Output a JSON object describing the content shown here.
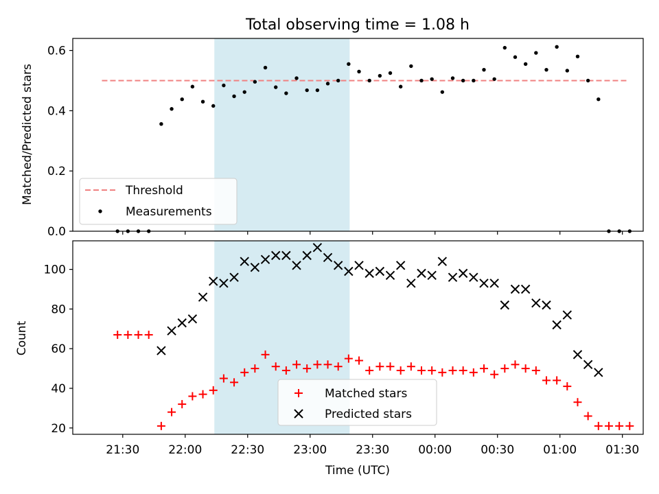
{
  "chart_data": [
    {
      "type": "scatter",
      "title": "Total observing time = 1.08 h",
      "ylabel": "Matched/Predicted stars",
      "xlabel": "",
      "x_unit": "minutes after 21:00 UTC",
      "xlim": [
        6.0,
        280.0
      ],
      "ylim": [
        0.0,
        0.64
      ],
      "yticks": [
        0.0,
        0.2,
        0.4,
        0.6
      ],
      "ytick_labels": [
        "0.0",
        "0.2",
        "0.4",
        "0.6"
      ],
      "highlight_span_x": [
        74.0,
        139.0
      ],
      "threshold": {
        "name": "Threshold",
        "y": 0.5,
        "x_range": [
          20.0,
          272.0
        ],
        "color": "#f08080",
        "style": "dashed"
      },
      "series": [
        {
          "name": "Measurements",
          "color": "#000000",
          "marker": "dot",
          "x": [
            27.5,
            32.5,
            37.5,
            42.5,
            48.5,
            53.5,
            58.5,
            63.5,
            68.5,
            73.5,
            78.5,
            83.5,
            88.5,
            93.5,
            98.5,
            103.5,
            108.5,
            113.5,
            118.5,
            123.5,
            128.5,
            133.5,
            138.5,
            143.5,
            148.5,
            153.5,
            158.5,
            163.5,
            168.5,
            173.5,
            178.5,
            183.5,
            188.5,
            193.5,
            198.5,
            203.5,
            208.5,
            213.5,
            218.5,
            223.5,
            228.5,
            233.5,
            238.5,
            243.5,
            248.5,
            253.5,
            258.5,
            263.5,
            268.5,
            273.5
          ],
          "y": [
            0.0,
            0.0,
            0.0,
            0.0,
            0.356,
            0.406,
            0.438,
            0.48,
            0.43,
            0.416,
            0.484,
            0.448,
            0.462,
            0.496,
            0.543,
            0.478,
            0.458,
            0.508,
            0.468,
            0.468,
            0.49,
            0.5,
            0.555,
            0.53,
            0.5,
            0.516,
            0.525,
            0.48,
            0.548,
            0.5,
            0.505,
            0.462,
            0.508,
            0.5,
            0.5,
            0.536,
            0.505,
            0.609,
            0.578,
            0.555,
            0.592,
            0.536,
            0.612,
            0.533,
            0.58,
            0.5,
            0.438,
            0.0,
            0.0,
            0.0
          ]
        }
      ],
      "legend": {
        "placement": "lower-left",
        "entries": [
          "Threshold",
          "Measurements"
        ]
      }
    },
    {
      "type": "scatter",
      "title": "",
      "ylabel": "Count",
      "xlabel": "Time (UTC)",
      "x_unit": "minutes after 21:00 UTC",
      "xlim": [
        6.0,
        280.0
      ],
      "ylim": [
        16.8,
        114.4
      ],
      "yticks": [
        20,
        40,
        60,
        80,
        100
      ],
      "ytick_labels": [
        "20",
        "40",
        "60",
        "80",
        "100"
      ],
      "xticks": [
        30,
        60,
        90,
        120,
        150,
        180,
        210,
        240,
        270
      ],
      "xtick_labels": [
        "21:30",
        "22:00",
        "22:30",
        "23:00",
        "23:30",
        "00:00",
        "00:30",
        "01:00",
        "01:30"
      ],
      "highlight_span_x": [
        74.0,
        139.0
      ],
      "series": [
        {
          "name": "Matched stars",
          "color": "#ff0000",
          "marker": "plus",
          "x": [
            27.5,
            32.5,
            37.5,
            42.5,
            48.5,
            53.5,
            58.5,
            63.5,
            68.5,
            73.5,
            78.5,
            83.5,
            88.5,
            93.5,
            98.5,
            103.5,
            108.5,
            113.5,
            118.5,
            123.5,
            128.5,
            133.5,
            138.5,
            143.5,
            148.5,
            153.5,
            158.5,
            163.5,
            168.5,
            173.5,
            178.5,
            183.5,
            188.5,
            193.5,
            198.5,
            203.5,
            208.5,
            213.5,
            218.5,
            223.5,
            228.5,
            233.5,
            238.5,
            243.5,
            248.5,
            253.5,
            258.5,
            263.5,
            268.5,
            273.5
          ],
          "y": [
            67,
            67,
            67,
            67,
            21,
            28,
            32,
            36,
            37,
            39,
            45,
            43,
            48,
            50,
            57,
            51,
            49,
            52,
            50,
            52,
            52,
            51,
            55,
            54,
            49,
            51,
            51,
            49,
            51,
            49,
            49,
            48,
            49,
            49,
            48,
            50,
            47,
            50,
            52,
            50,
            49,
            44,
            44,
            41,
            33,
            26,
            21,
            21,
            21,
            21
          ]
        },
        {
          "name": "Predicted stars",
          "color": "#000000",
          "marker": "x",
          "x": [
            48.5,
            53.5,
            58.5,
            63.5,
            68.5,
            73.5,
            78.5,
            83.5,
            88.5,
            93.5,
            98.5,
            103.5,
            108.5,
            113.5,
            118.5,
            123.5,
            128.5,
            133.5,
            138.5,
            143.5,
            148.5,
            153.5,
            158.5,
            163.5,
            168.5,
            173.5,
            178.5,
            183.5,
            188.5,
            193.5,
            198.5,
            203.5,
            208.5,
            213.5,
            218.5,
            223.5,
            228.5,
            233.5,
            238.5,
            243.5,
            248.5,
            253.5,
            258.5
          ],
          "y": [
            59,
            69,
            73,
            75,
            86,
            94,
            93,
            96,
            104,
            101,
            105,
            107,
            107,
            102,
            107,
            111,
            106,
            102,
            99,
            102,
            98,
            99,
            97,
            102,
            93,
            98,
            97,
            104,
            96,
            98,
            96,
            93,
            93,
            82,
            90,
            90,
            83,
            82,
            72,
            77,
            57,
            52,
            48
          ]
        }
      ],
      "legend": {
        "placement": "lower-center",
        "entries": [
          "Matched stars",
          "Predicted stars"
        ]
      }
    }
  ]
}
